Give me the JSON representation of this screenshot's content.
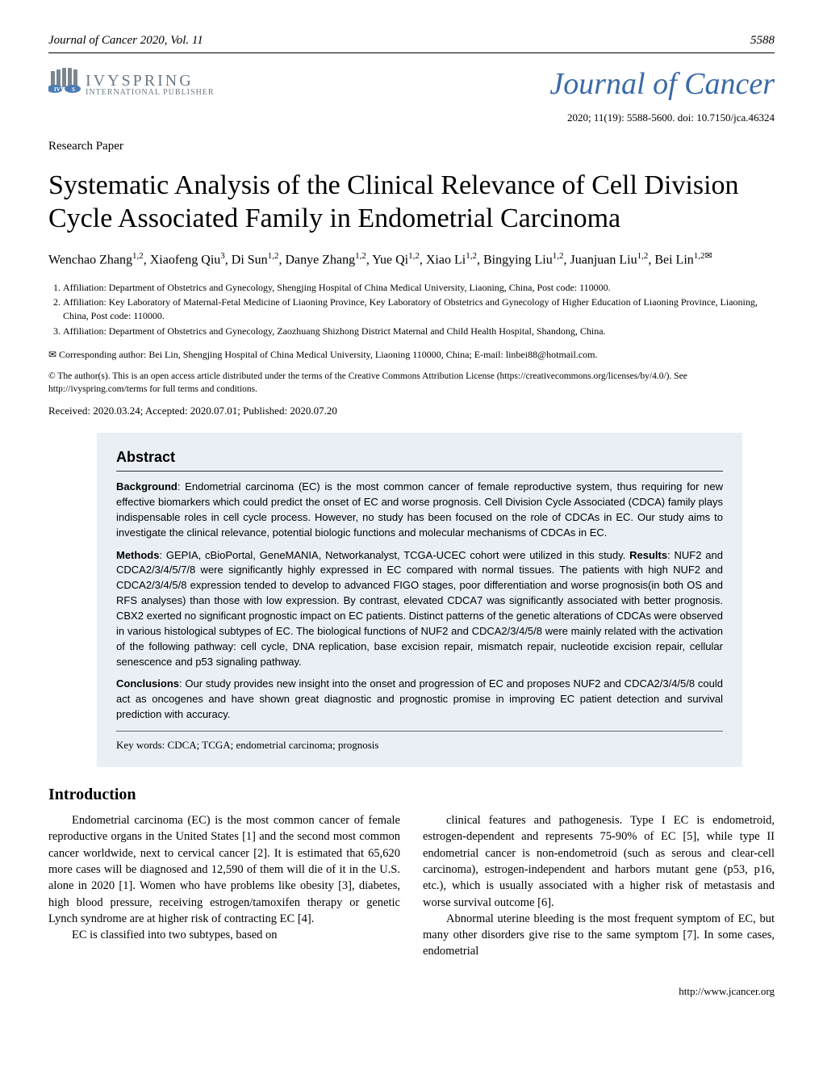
{
  "header": {
    "journal_vol": "Journal of Cancer 2020, Vol. 11",
    "page_num": "5588"
  },
  "publisher": {
    "name_top": "IVYSPRING",
    "name_bottom": "INTERNATIONAL PUBLISHER"
  },
  "journal_name": "Journal of Cancer",
  "citation": "2020; 11(19): 5588-5600. doi: 10.7150/jca.46324",
  "paper_type": "Research Paper",
  "title": "Systematic Analysis of the Clinical Relevance of Cell Division Cycle Associated Family in Endometrial Carcinoma",
  "authors_html": "Wenchao Zhang<sup>1,2</sup>, Xiaofeng Qiu<sup>3</sup>, Di Sun<sup>1,2</sup>, Danye Zhang<sup>1,2</sup>, Yue Qi<sup>1,2</sup>, Xiao Li<sup>1,2</sup>, Bingying Liu<sup>1,2</sup>, Juanjuan Liu<sup>1,2</sup>, Bei Lin<sup>1,2✉</sup>",
  "affiliations": [
    "Affiliation: Department of Obstetrics and Gynecology, Shengjing Hospital of China Medical University, Liaoning, China, Post code: 110000.",
    "Affiliation: Key Laboratory of Maternal-Fetal Medicine of Liaoning Province, Key Laboratory of Obstetrics and Gynecology of Higher Education of Liaoning Province, Liaoning, China, Post code: 110000.",
    "Affiliation: Department of Obstetrics and Gynecology, Zaozhuang Shizhong District Maternal and Child Health Hospital, Shandong, China."
  ],
  "corresponding": "✉ Corresponding author: Bei Lin, Shengjing Hospital of China Medical University, Liaoning 110000, China; E-mail: linbei88@hotmail.com.",
  "license": "© The author(s). This is an open access article distributed under the terms of the Creative Commons Attribution License (https://creativecommons.org/licenses/by/4.0/). See http://ivyspring.com/terms for full terms and conditions.",
  "dates": "Received: 2020.03.24; Accepted: 2020.07.01; Published: 2020.07.20",
  "abstract": {
    "heading": "Abstract",
    "paragraphs": [
      {
        "bold": "Background",
        "text": ": Endometrial carcinoma (EC) is the most common cancer of female reproductive system, thus requiring for new effective biomarkers which could predict the onset of EC and worse prognosis. Cell Division Cycle Associated (CDCA) family plays indispensable roles in cell cycle process. However, no study has been focused on the role of CDCAs in EC. Our study aims to investigate the clinical relevance, potential biologic functions and molecular mechanisms of CDCAs in EC."
      },
      {
        "bold": "Methods",
        "text": ": GEPIA, cBioPortal, GeneMANIA, Networkanalyst, TCGA-UCEC cohort were utilized in this study."
      },
      {
        "bold": "Results",
        "text": ": NUF2 and CDCA2/3/4/5/7/8 were significantly highly expressed in EC compared with normal tissues. The patients with high NUF2 and CDCA2/3/4/5/8 expression tended to develop to advanced FIGO stages, poor differentiation and worse prognosis(in both OS and RFS analyses) than those with low expression. By contrast, elevated CDCA7 was significantly associated with better prognosis. CBX2 exerted no significant prognostic impact on EC patients. Distinct patterns of the genetic alterations of CDCAs were observed in various histological subtypes of EC. The biological functions of NUF2 and CDCA2/3/4/5/8 were mainly related with the activation of the following pathway: cell cycle, DNA replication, base excision repair, mismatch repair, nucleotide excision repair, cellular senescence and p53 signaling pathway."
      },
      {
        "bold": "Conclusions",
        "text": ": Our study provides new insight into the onset and progression of EC and proposes NUF2 and CDCA2/3/4/5/8 could act as oncogenes and have shown great diagnostic and prognostic promise in improving EC patient detection and survival prediction with accuracy."
      }
    ],
    "keywords": "Key words: CDCA; TCGA; endometrial carcinoma; prognosis"
  },
  "intro": {
    "heading": "Introduction",
    "col1": [
      "Endometrial carcinoma (EC) is the most common cancer of female reproductive organs in the United States [1] and the second most common cancer worldwide, next to cervical cancer [2]. It is estimated that 65,620 more cases will be diagnosed and 12,590 of them will die of it in the U.S. alone in 2020 [1]. Women who have problems like obesity [3], diabetes, high blood pressure, receiving estrogen/tamoxifen therapy or genetic Lynch syndrome are at higher risk of contracting EC [4].",
      "EC is classified into two subtypes, based on"
    ],
    "col2": [
      "clinical features and pathogenesis. Type I EC is endometroid, estrogen-dependent and represents 75-90% of EC [5], while type II endometrial cancer is non-endometroid (such as serous and clear-cell carcinoma), estrogen-independent and harbors mutant gene (p53, p16, etc.), which is usually associated with a higher risk of metastasis and worse survival outcome [6].",
      "Abnormal uterine bleeding is the most frequent symptom of EC, but many other disorders give rise to the same symptom [7]. In some cases, endometrial"
    ]
  },
  "footer_url": "http://www.jcancer.org",
  "colors": {
    "abstract_bg": "#eaeff5",
    "journal_name": "#3a6aa8",
    "publisher_grey": "#6b7a85"
  }
}
